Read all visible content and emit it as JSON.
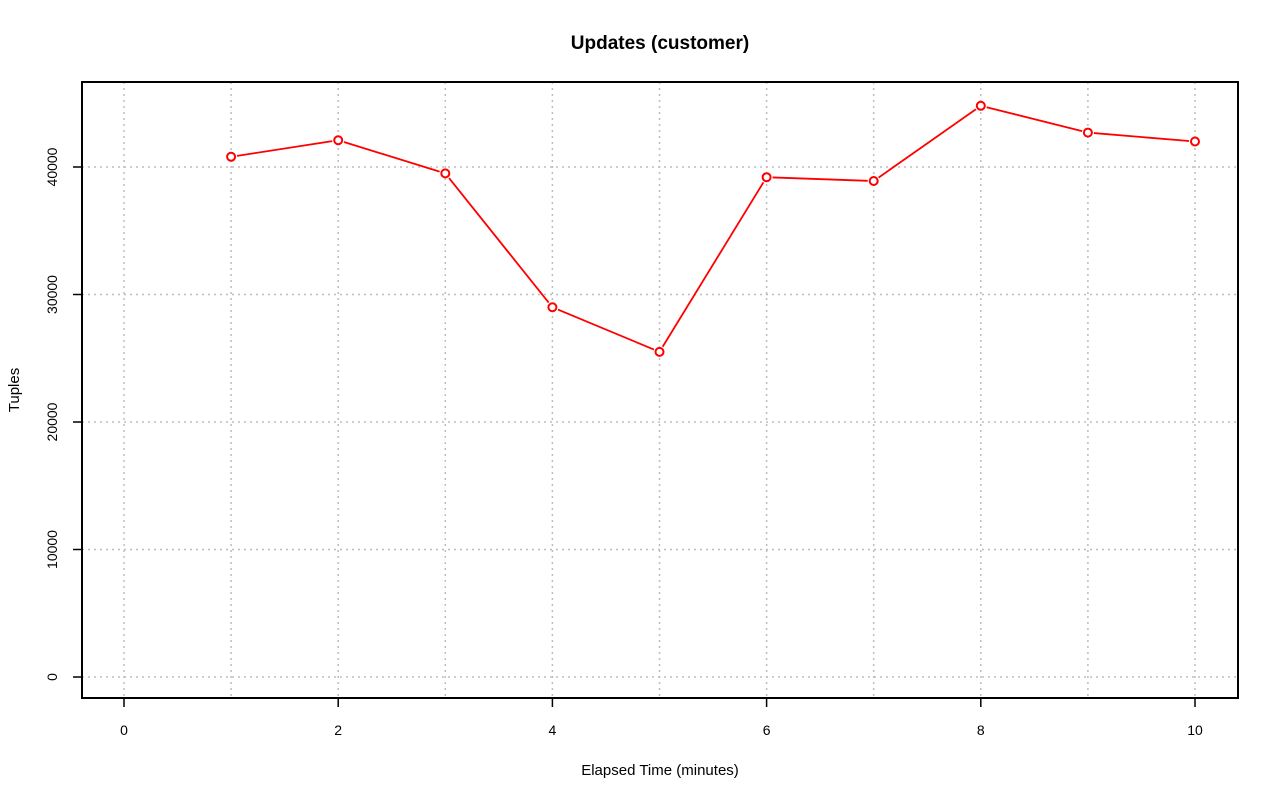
{
  "chart_data": {
    "type": "line",
    "title": "Updates (customer)",
    "xlabel": "Elapsed Time (minutes)",
    "ylabel": "Tuples",
    "xlim": [
      0,
      10
    ],
    "ylim": [
      0,
      45000
    ],
    "x_ticks": [
      0,
      2,
      4,
      6,
      8,
      10
    ],
    "y_ticks": [
      0,
      10000,
      20000,
      30000,
      40000
    ],
    "grid": true,
    "series": [
      {
        "color": "#ff0000",
        "marker": "open-circle",
        "x": [
          1,
          2,
          3,
          4,
          5,
          6,
          7,
          8,
          9,
          10
        ],
        "y": [
          40800,
          42100,
          39500,
          29000,
          25500,
          39200,
          38900,
          44800,
          42700,
          42000
        ]
      }
    ]
  }
}
